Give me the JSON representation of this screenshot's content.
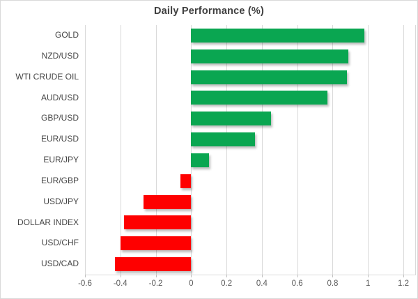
{
  "chart_data": {
    "type": "bar",
    "orientation": "horizontal",
    "title": "Daily Performance (%)",
    "categories": [
      "GOLD",
      "NZD/USD",
      "WTI CRUDE OIL",
      "AUD/USD",
      "GBP/USD",
      "EUR/USD",
      "EUR/JPY",
      "EUR/GBP",
      "USD/JPY",
      "DOLLAR INDEX",
      "USD/CHF",
      "USD/CAD"
    ],
    "values": [
      0.98,
      0.89,
      0.88,
      0.77,
      0.45,
      0.36,
      0.1,
      -0.06,
      -0.27,
      -0.38,
      -0.4,
      -0.43
    ],
    "xlim": [
      -0.6,
      1.2
    ],
    "x_ticks": [
      -0.6,
      -0.4,
      -0.2,
      0,
      0.2,
      0.4,
      0.6,
      0.8,
      1,
      1.2
    ],
    "x_tick_labels": [
      "-0.6",
      "-0.4",
      "-0.2",
      "0",
      "0.2",
      "0.4",
      "0.6",
      "0.8",
      "1",
      "1.2"
    ],
    "grid": "vertical",
    "legend": "none",
    "colors": {
      "positive": "#0aa651",
      "negative": "#fe0000",
      "gridline": "#d9d9d9",
      "tick_mark": "#bfbfbf",
      "title_text": "#3f3f3f",
      "axis_text": "#595959",
      "category_text": "#444444",
      "chart_border": "#d9d9d9",
      "background": "#ffffff"
    }
  }
}
